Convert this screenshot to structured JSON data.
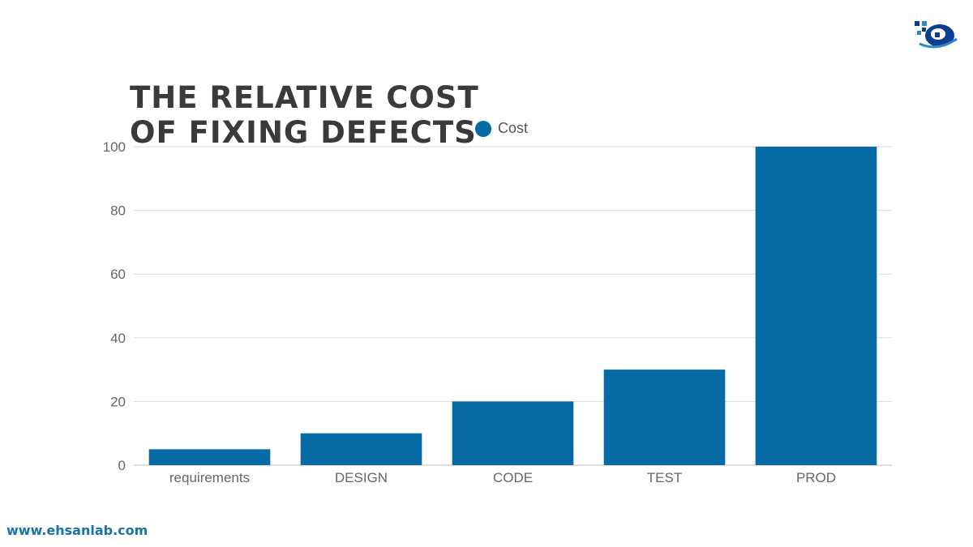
{
  "chart_data": {
    "type": "bar",
    "title_lines": [
      "THE RELATIVE COST",
      "OF FIXING DEFECTS"
    ],
    "categories": [
      "requirements",
      "DESIGN",
      "CODE",
      "TEST",
      "PROD"
    ],
    "series": [
      {
        "name": "Cost",
        "values": [
          5,
          10,
          20,
          30,
          100
        ]
      }
    ],
    "yticks": [
      0,
      20,
      40,
      60,
      80,
      100
    ],
    "ylim": [
      0,
      100
    ],
    "grid": true,
    "legend_position": "top",
    "bar_color": "#066aa5"
  },
  "footer": {
    "url": "www.ehsanlab.com"
  },
  "logo": {
    "icon": "cloud-logo-icon"
  }
}
